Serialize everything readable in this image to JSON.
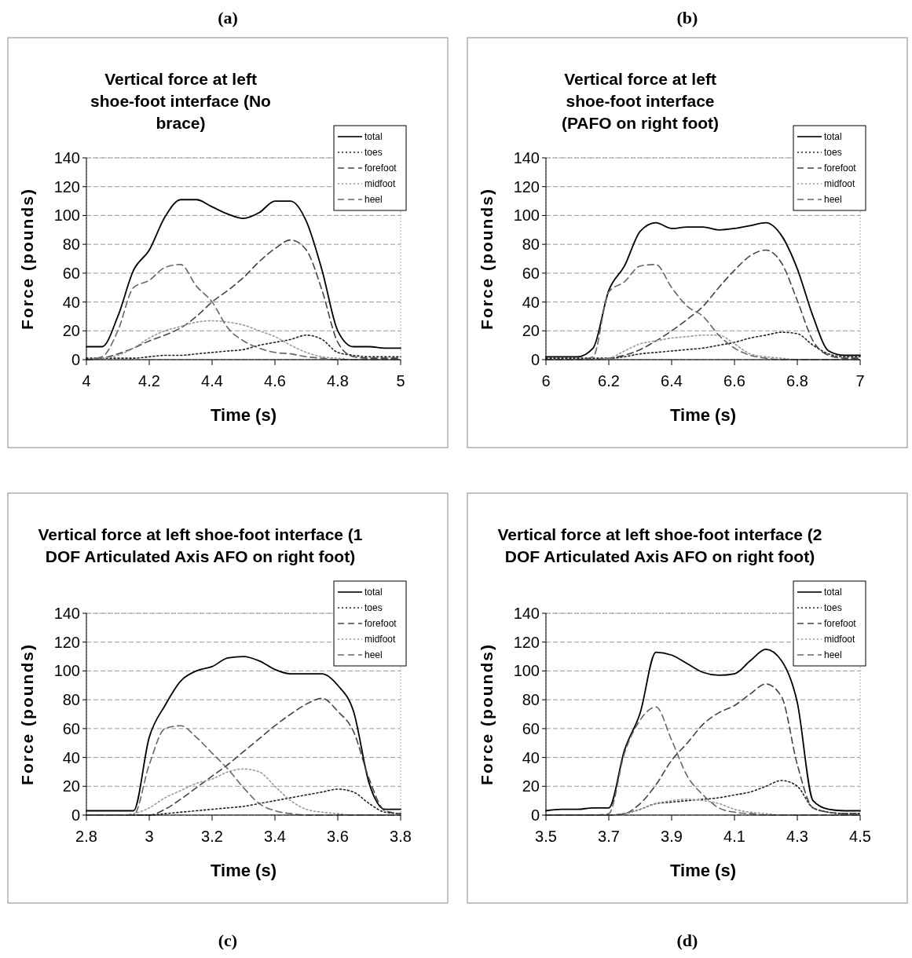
{
  "chart_data": [
    {
      "type": "line",
      "title": "Vertical force at left shoe-foot interface (No brace)",
      "annotations": [
        "(a)"
      ],
      "xlabel": "Time (s)",
      "ylabel": "Force (pounds)",
      "xlim": [
        4,
        5
      ],
      "xticks": [
        4,
        4.2,
        4.4,
        4.6,
        4.8,
        5
      ],
      "ylim": [
        0,
        140
      ],
      "yticks": [
        0,
        20,
        40,
        60,
        80,
        100,
        120,
        140
      ],
      "grid": "y",
      "legend": "top right",
      "x": [
        4,
        4.05,
        4.1,
        4.15,
        4.2,
        4.25,
        4.3,
        4.35,
        4.4,
        4.45,
        4.5,
        4.55,
        4.6,
        4.65,
        4.7,
        4.75,
        4.8,
        4.85,
        4.9,
        4.95,
        5
      ],
      "series": [
        {
          "name": "total",
          "color": "#000000",
          "line_style": "solid",
          "values": [
            9,
            9,
            30,
            62,
            76,
            99,
            111,
            111,
            106,
            101,
            98,
            102,
            110,
            110,
            96,
            62,
            20,
            9,
            9,
            8,
            8
          ]
        },
        {
          "name": "toes",
          "color": "#222222",
          "line_style": "dotted",
          "values": [
            1,
            1,
            1,
            1,
            2,
            3,
            3,
            4,
            5,
            6,
            7,
            10,
            12,
            14,
            17,
            14,
            5,
            3,
            2,
            2,
            2
          ]
        },
        {
          "name": "forefoot",
          "color": "#444444",
          "line_style": "dashed",
          "values": [
            0,
            1,
            4,
            8,
            13,
            17,
            22,
            30,
            40,
            48,
            57,
            68,
            77,
            83,
            76,
            48,
            12,
            2,
            1,
            1,
            1
          ]
        },
        {
          "name": "midfoot",
          "color": "#999999",
          "line_style": "dotted",
          "values": [
            0,
            1,
            3,
            8,
            15,
            20,
            23,
            26,
            27,
            26,
            24,
            20,
            16,
            10,
            5,
            2,
            1,
            0,
            0,
            0,
            0
          ]
        },
        {
          "name": "heel",
          "color": "#666666",
          "line_style": "dashed",
          "values": [
            0,
            2,
            20,
            50,
            55,
            64,
            66,
            51,
            40,
            22,
            13,
            8,
            5,
            4,
            2,
            1,
            0,
            0,
            0,
            0,
            0
          ]
        }
      ]
    },
    {
      "type": "line",
      "title": "Vertical force at left shoe-foot interface (PAFO on right foot)",
      "annotations": [
        "(b)"
      ],
      "xlabel": "Time (s)",
      "ylabel": "Force (pounds)",
      "xlim": [
        6,
        7
      ],
      "xticks": [
        6,
        6.2,
        6.4,
        6.6,
        6.8,
        7
      ],
      "ylim": [
        0,
        140
      ],
      "yticks": [
        0,
        20,
        40,
        60,
        80,
        100,
        120,
        140
      ],
      "grid": "y",
      "legend": "top right",
      "x": [
        6,
        6.05,
        6.1,
        6.15,
        6.2,
        6.25,
        6.3,
        6.35,
        6.4,
        6.45,
        6.5,
        6.55,
        6.6,
        6.65,
        6.7,
        6.75,
        6.8,
        6.85,
        6.9,
        6.95,
        7
      ],
      "series": [
        {
          "name": "total",
          "color": "#000000",
          "line_style": "solid",
          "values": [
            2,
            2,
            2,
            8,
            48,
            65,
            89,
            95,
            91,
            92,
            92,
            90,
            91,
            93,
            95,
            86,
            63,
            30,
            6,
            3,
            3
          ]
        },
        {
          "name": "toes",
          "color": "#222222",
          "line_style": "dotted",
          "values": [
            1,
            1,
            1,
            1,
            1,
            2,
            4,
            5,
            6,
            7,
            8,
            10,
            12,
            15,
            17,
            19,
            18,
            10,
            4,
            2,
            2
          ]
        },
        {
          "name": "forefoot",
          "color": "#444444",
          "line_style": "dashed",
          "values": [
            0,
            0,
            0,
            0,
            1,
            3,
            7,
            13,
            20,
            28,
            37,
            50,
            62,
            72,
            76,
            67,
            41,
            13,
            3,
            1,
            1
          ]
        },
        {
          "name": "midfoot",
          "color": "#999999",
          "line_style": "dotted",
          "values": [
            0,
            0,
            0,
            0,
            1,
            6,
            11,
            13,
            15,
            16,
            17,
            17,
            11,
            4,
            2,
            1,
            0,
            0,
            0,
            0,
            0
          ]
        },
        {
          "name": "heel",
          "color": "#666666",
          "line_style": "dashed",
          "values": [
            0,
            0,
            0,
            2,
            47,
            54,
            65,
            66,
            50,
            37,
            30,
            17,
            8,
            3,
            1,
            0,
            0,
            0,
            0,
            0,
            0
          ]
        }
      ]
    },
    {
      "type": "line",
      "title": "Vertical force at left shoe-foot interface (1 DOF Articulated Axis AFO on right foot)",
      "annotations": [
        "(c)"
      ],
      "xlabel": "Time (s)",
      "ylabel": "Force (pounds)",
      "xlim": [
        2.8,
        3.8
      ],
      "xticks": [
        2.8,
        3,
        3.2,
        3.4,
        3.6,
        3.8
      ],
      "ylim": [
        0,
        140
      ],
      "yticks": [
        0,
        20,
        40,
        60,
        80,
        100,
        120,
        140
      ],
      "grid": "y",
      "legend": "top right",
      "x": [
        2.8,
        2.85,
        2.9,
        2.95,
        3,
        3.05,
        3.1,
        3.15,
        3.2,
        3.25,
        3.3,
        3.35,
        3.4,
        3.45,
        3.5,
        3.55,
        3.6,
        3.65,
        3.7,
        3.75,
        3.8
      ],
      "series": [
        {
          "name": "total",
          "color": "#000000",
          "line_style": "solid",
          "values": [
            3,
            3,
            3,
            3,
            54,
            76,
            93,
            100,
            103,
            109,
            110,
            107,
            101,
            98,
            98,
            98,
            90,
            72,
            22,
            4,
            4
          ]
        },
        {
          "name": "toes",
          "color": "#222222",
          "line_style": "dotted",
          "values": [
            0,
            0,
            0,
            0,
            0,
            1,
            2,
            3,
            4,
            5,
            6,
            8,
            10,
            12,
            14,
            16,
            18,
            16,
            8,
            2,
            1
          ]
        },
        {
          "name": "forefoot",
          "color": "#444444",
          "line_style": "dashed",
          "values": [
            0,
            0,
            0,
            0,
            0,
            4,
            11,
            19,
            27,
            35,
            44,
            53,
            62,
            70,
            77,
            81,
            72,
            58,
            25,
            3,
            1
          ]
        },
        {
          "name": "midfoot",
          "color": "#999999",
          "line_style": "dotted",
          "values": [
            0,
            0,
            0,
            1,
            5,
            12,
            17,
            22,
            25,
            30,
            32,
            30,
            20,
            10,
            4,
            2,
            1,
            0,
            0,
            0,
            0
          ]
        },
        {
          "name": "heel",
          "color": "#666666",
          "line_style": "dashed",
          "values": [
            0,
            0,
            0,
            0,
            35,
            60,
            62,
            54,
            43,
            32,
            19,
            8,
            3,
            1,
            0,
            0,
            0,
            0,
            0,
            0,
            0
          ]
        }
      ]
    },
    {
      "type": "line",
      "title": "Vertical force at left shoe-foot interface (2 DOF Articulated Axis AFO on right foot)",
      "annotations": [
        "(d)"
      ],
      "xlabel": "Time (s)",
      "ylabel": "Force (pounds)",
      "xlim": [
        3.5,
        4.5
      ],
      "xticks": [
        3.5,
        3.7,
        3.9,
        4.1,
        4.3,
        4.5
      ],
      "ylim": [
        0,
        140
      ],
      "yticks": [
        0,
        20,
        40,
        60,
        80,
        100,
        120,
        140
      ],
      "grid": "y",
      "legend": "top right",
      "x": [
        3.5,
        3.55,
        3.6,
        3.65,
        3.7,
        3.75,
        3.8,
        3.85,
        3.9,
        3.95,
        4,
        4.05,
        4.1,
        4.15,
        4.2,
        4.25,
        4.3,
        4.35,
        4.4,
        4.45,
        4.5
      ],
      "series": [
        {
          "name": "total",
          "color": "#000000",
          "line_style": "solid",
          "values": [
            3,
            4,
            4,
            5,
            5,
            45,
            71,
            113,
            111,
            105,
            99,
            97,
            98,
            107,
            115,
            107,
            78,
            10,
            4,
            3,
            3
          ]
        },
        {
          "name": "toes",
          "color": "#222222",
          "line_style": "dotted",
          "values": [
            0,
            0,
            0,
            0,
            0,
            1,
            4,
            8,
            9,
            10,
            11,
            12,
            14,
            16,
            20,
            24,
            20,
            5,
            2,
            1,
            1
          ]
        },
        {
          "name": "forefoot",
          "color": "#444444",
          "line_style": "dashed",
          "values": [
            0,
            0,
            0,
            0,
            0,
            1,
            8,
            21,
            38,
            50,
            63,
            71,
            76,
            84,
            91,
            82,
            35,
            5,
            2,
            1,
            1
          ]
        },
        {
          "name": "midfoot",
          "color": "#999999",
          "line_style": "dotted",
          "values": [
            0,
            0,
            0,
            0,
            0,
            1,
            4,
            8,
            10,
            11,
            10,
            8,
            4,
            2,
            1,
            0,
            0,
            0,
            0,
            0,
            0
          ]
        },
        {
          "name": "heel",
          "color": "#666666",
          "line_style": "dashed",
          "values": [
            0,
            0,
            0,
            0,
            1,
            43,
            66,
            75,
            52,
            27,
            14,
            5,
            2,
            1,
            0,
            0,
            0,
            0,
            0,
            0,
            0
          ]
        }
      ]
    }
  ]
}
